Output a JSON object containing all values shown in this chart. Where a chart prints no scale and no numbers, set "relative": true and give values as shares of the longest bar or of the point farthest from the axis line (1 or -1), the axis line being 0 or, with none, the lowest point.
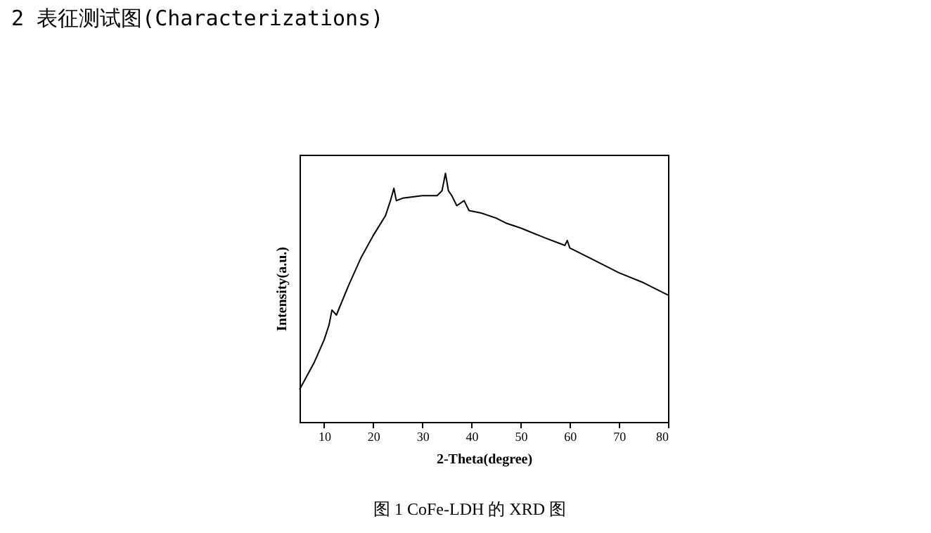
{
  "chart_data": {
    "type": "line",
    "title": "2  表征测试图(Characterizations)",
    "xlabel": "2-Theta(degree)",
    "ylabel": "Intensity(a.u.)",
    "annotations": [
      "图 1 CoFe-LDH 的 XRD 图"
    ],
    "x": [
      5,
      8,
      10,
      11,
      11.6,
      12.5,
      15,
      17.5,
      20,
      22.5,
      23.5,
      24.2,
      24.7,
      26,
      30,
      33,
      34,
      34.7,
      35.3,
      36,
      37,
      38.5,
      39.5,
      42,
      45,
      47,
      50,
      55,
      59,
      59.5,
      60,
      62,
      65,
      70,
      75,
      80
    ],
    "series": [
      {
        "color": "#000000",
        "values": [
          0.13,
          0.24,
          0.33,
          0.39,
          0.45,
          0.43,
          0.55,
          0.66,
          0.75,
          0.83,
          0.89,
          0.94,
          0.89,
          0.9,
          0.91,
          0.91,
          0.93,
          1.0,
          0.93,
          0.91,
          0.87,
          0.89,
          0.85,
          0.84,
          0.82,
          0.8,
          0.78,
          0.74,
          0.71,
          0.73,
          0.7,
          0.68,
          0.65,
          0.6,
          0.56,
          0.51
        ]
      }
    ],
    "relative": true,
    "xlim": [
      5,
      80
    ],
    "xticks": [
      10,
      20,
      30,
      40,
      50,
      60,
      70,
      80
    ],
    "grid": false,
    "line_style": "solid",
    "marker": "none"
  }
}
